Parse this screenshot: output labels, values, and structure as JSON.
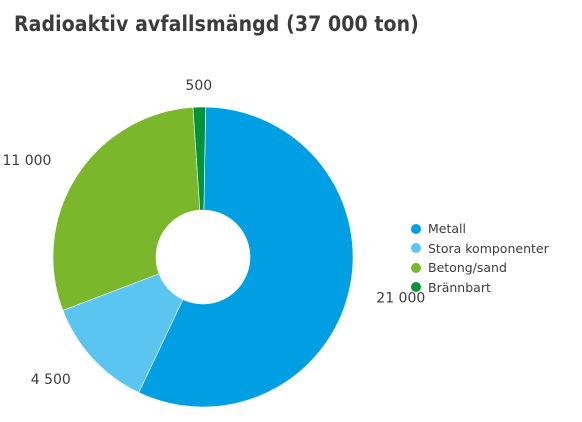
{
  "chart_data": {
    "type": "pie",
    "title": "Radioaktiv avfallsmängd (37 000 ton)",
    "categories": [
      "Metall",
      "Stora komponenter",
      "Betong/sand",
      "Brännbart"
    ],
    "values": [
      21000,
      4500,
      11000,
      500
    ],
    "data_labels": [
      "21 000",
      "4 500",
      "11 000",
      "500"
    ],
    "colors": [
      "#009fe3",
      "#5bc5f2",
      "#7ab72a",
      "#00953b"
    ],
    "donut": true,
    "legend": "right"
  }
}
